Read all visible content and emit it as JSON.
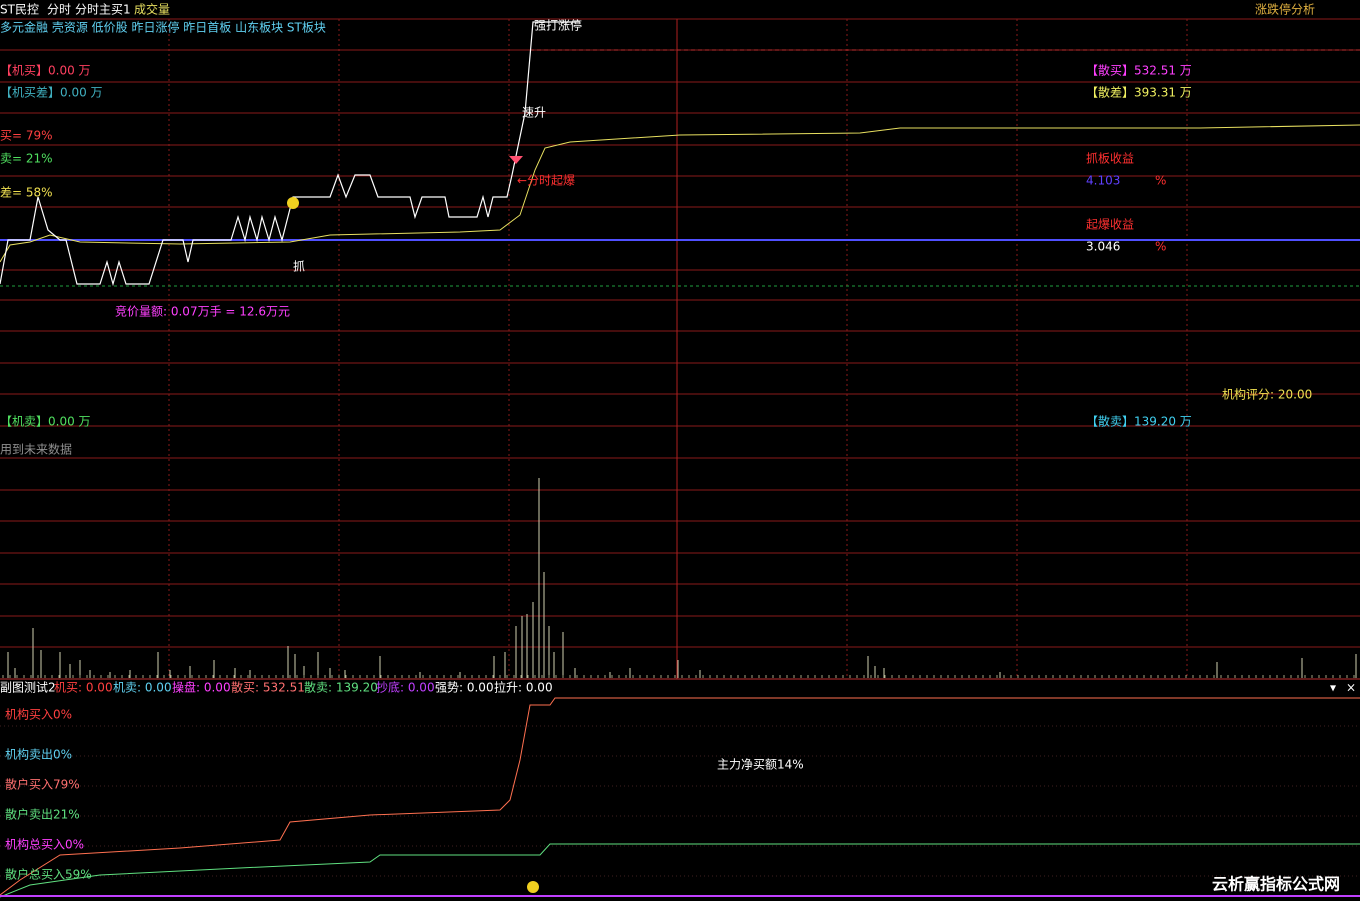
{
  "header": {
    "stock": "ST民控",
    "tabs": [
      "分时",
      "分时主买1",
      "成交量"
    ],
    "right": "涨跌停分析"
  },
  "tags": "多元金融 壳资源 低价股 昨日涨停 昨日首板 山东板块 ST板块",
  "main_pane": {
    "left_labels": [
      "【机买】0.00 万",
      "【机买差】0.00 万",
      "买= 79%",
      "卖= 21%",
      "差= 58%",
      "竞价量额: 0.07万手 = 12.6万元",
      "【机卖】0.00 万",
      "用到未来数据"
    ],
    "annotations": [
      "强打涨停",
      "速升",
      "←分时起爆",
      "抓"
    ],
    "right_labels": [
      "【散买】532.51 万",
      "【散差】393.31 万",
      "抓板收益",
      "4.103",
      "%",
      "起爆收益",
      "3.046",
      "%",
      "机构评分: 20.00",
      "【散卖】139.20 万"
    ]
  },
  "sub_pane": {
    "title": "副图测试2",
    "indicators": [
      "机买: 0.00",
      "机卖: 0.00",
      "操盘: 0.00",
      "散买: 532.51",
      "散卖: 139.20",
      "抄底: 0.00",
      "强势: 0.00",
      "拉升: 0.00"
    ],
    "labels": [
      "机构买入0%",
      "机构卖出0%",
      "散户买入79%",
      "散户卖出21%",
      "机构总买入0%",
      "散户总买入59%"
    ],
    "center_label": "主力净买额14%"
  },
  "watermark": "云析赢指标公式网"
}
